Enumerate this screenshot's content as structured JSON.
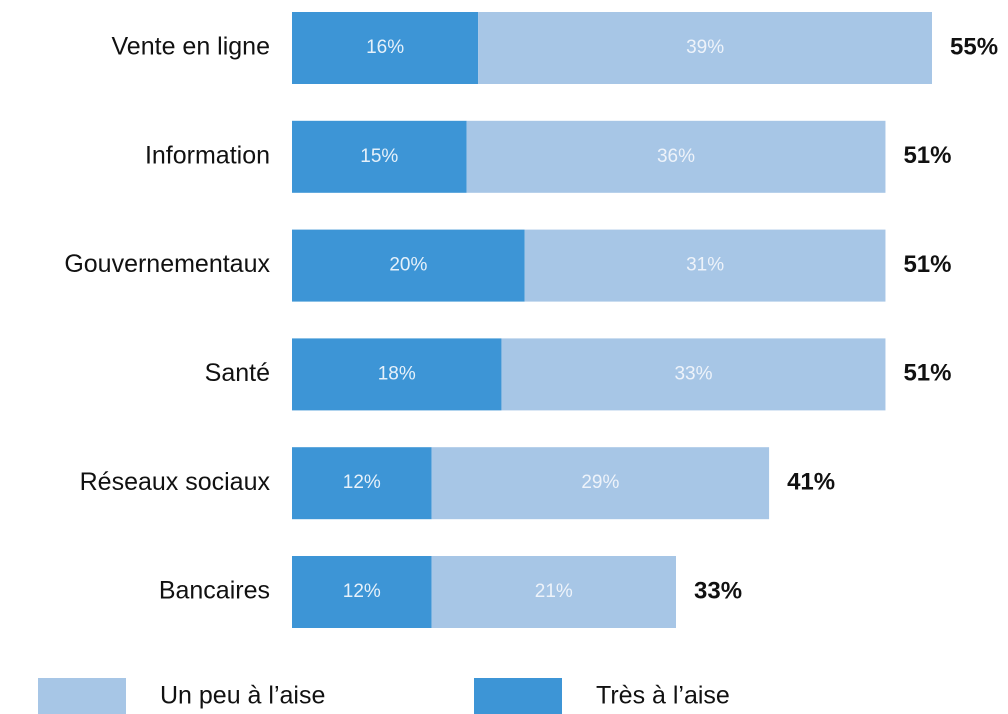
{
  "chart_data": {
    "type": "stacked-bar-horizontal",
    "categories": [
      "Vente en ligne",
      "Information",
      "Gouvernementaux",
      "Santé",
      "Réseaux sociaux",
      "Bancaires"
    ],
    "series": [
      {
        "name": "Très à l’aise",
        "color": "#3d95d6",
        "values": [
          16,
          15,
          20,
          18,
          12,
          12
        ],
        "value_labels": [
          "16%",
          "15%",
          "20%",
          "18%",
          "12%",
          "12%"
        ]
      },
      {
        "name": "Un peu à l’aise",
        "color": "#a7c6e6",
        "values": [
          39,
          36,
          31,
          33,
          29,
          21
        ],
        "value_labels": [
          "39%",
          "36%",
          "31%",
          "33%",
          "29%",
          "21%"
        ]
      }
    ],
    "totals": {
      "values": [
        55,
        51,
        51,
        51,
        41,
        33
      ],
      "value_labels": [
        "55%",
        "51%",
        "51%",
        "51%",
        "41%",
        "33%"
      ]
    },
    "legend_order": [
      1,
      0
    ]
  }
}
